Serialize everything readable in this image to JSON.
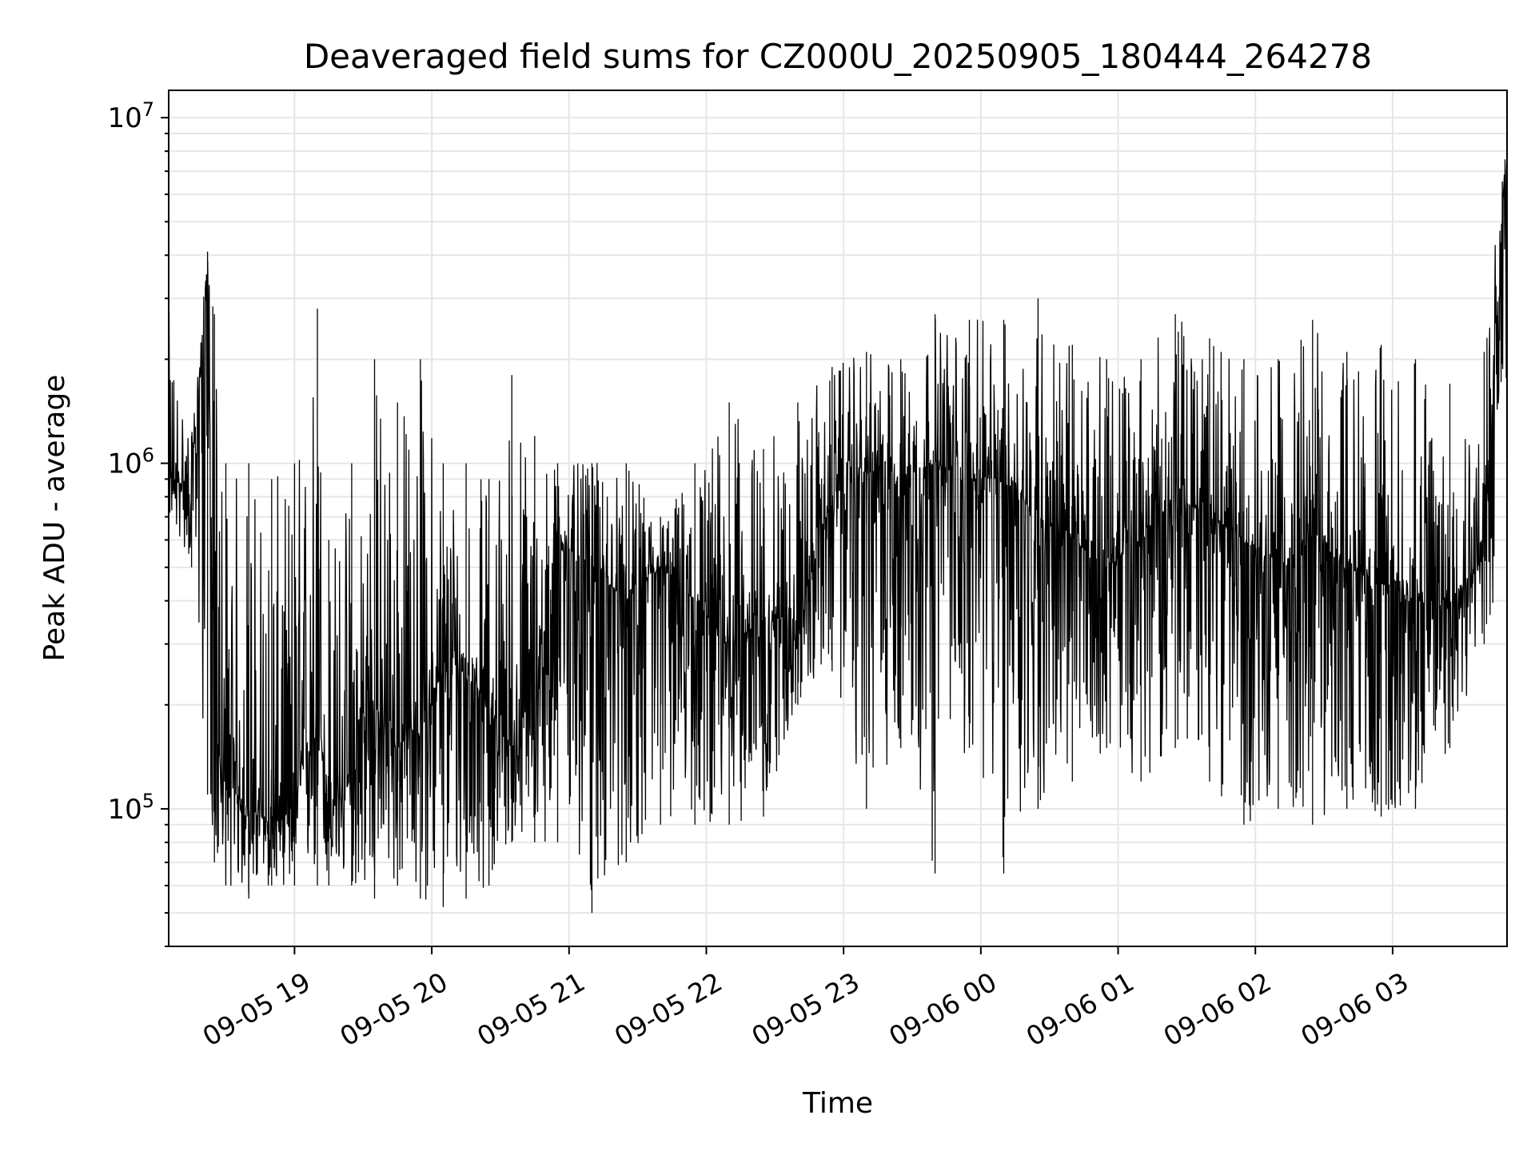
{
  "chart_data": {
    "type": "line",
    "title": "Deaveraged field sums for CZ000U_20250905_180444_264278",
    "xlabel": "Time",
    "ylabel": "Peak ADU - average",
    "x_axis": {
      "kind": "datetime",
      "range": [
        "2025-09-05 18:05",
        "2025-09-06 03:50"
      ],
      "ticks": [
        "2025-09-05 19:00",
        "2025-09-05 20:00",
        "2025-09-05 21:00",
        "2025-09-05 22:00",
        "2025-09-05 23:00",
        "2025-09-06 00:00",
        "2025-09-06 01:00",
        "2025-09-06 02:00",
        "2025-09-06 03:00"
      ],
      "tick_labels": [
        "09-05 19",
        "09-05 20",
        "09-05 21",
        "09-05 22",
        "09-05 23",
        "09-06 00",
        "09-06 01",
        "09-06 02",
        "09-06 03"
      ]
    },
    "y_axis": {
      "scale": "log",
      "range": [
        40000,
        12000000
      ],
      "major_ticks": [
        100000,
        1000000,
        10000000
      ],
      "tick_labels": [
        {
          "base": "10",
          "exp": "5"
        },
        {
          "base": "10",
          "exp": "6"
        },
        {
          "base": "10",
          "exp": "7"
        }
      ]
    },
    "grid": true,
    "legend": "none",
    "line_color": "#000000",
    "grid_color": "#e6e6e6",
    "series": [
      {
        "x": [
          "2025-09-05 18:05",
          "2025-09-05 18:15",
          "2025-09-05 18:22",
          "2025-09-05 18:25",
          "2025-09-05 18:30",
          "2025-09-05 18:40",
          "2025-09-05 18:50",
          "2025-09-05 19:00",
          "2025-09-05 19:10",
          "2025-09-05 19:15",
          "2025-09-05 19:25",
          "2025-09-05 19:35",
          "2025-09-05 19:45",
          "2025-09-05 19:55",
          "2025-09-05 20:05",
          "2025-09-05 20:15",
          "2025-09-05 20:25",
          "2025-09-05 20:35",
          "2025-09-05 20:45",
          "2025-09-05 20:55",
          "2025-09-05 21:10",
          "2025-09-05 21:25",
          "2025-09-05 21:40",
          "2025-09-05 21:55",
          "2025-09-05 22:10",
          "2025-09-05 22:25",
          "2025-09-05 22:40",
          "2025-09-05 22:55",
          "2025-09-05 23:10",
          "2025-09-05 23:25",
          "2025-09-05 23:40",
          "2025-09-05 23:55",
          "2025-09-06 00:10",
          "2025-09-06 00:25",
          "2025-09-06 00:40",
          "2025-09-06 00:55",
          "2025-09-06 01:10",
          "2025-09-06 01:25",
          "2025-09-06 01:40",
          "2025-09-06 01:55",
          "2025-09-06 02:10",
          "2025-09-06 02:25",
          "2025-09-06 02:40",
          "2025-09-06 02:55",
          "2025-09-06 03:10",
          "2025-09-06 03:25",
          "2025-09-06 03:40",
          "2025-09-06 03:50"
        ],
        "y": [
          900000,
          850000,
          3900000,
          150000,
          120000,
          100000,
          90000,
          100000,
          200000,
          100000,
          120000,
          200000,
          150000,
          180000,
          250000,
          250000,
          200000,
          150000,
          200000,
          600000,
          500000,
          400000,
          500000,
          400000,
          300000,
          350000,
          350000,
          800000,
          950000,
          900000,
          1000000,
          900000,
          900000,
          700000,
          600000,
          500000,
          600000,
          800000,
          700000,
          600000,
          500000,
          600000,
          500000,
          450000,
          400000,
          400000,
          550000,
          9500000
        ],
        "bottom_envelope": [
          700000,
          500000,
          110000,
          70000,
          60000,
          55000,
          60000,
          60000,
          60000,
          60000,
          60000,
          55000,
          60000,
          55000,
          52000,
          55000,
          60000,
          80000,
          80000,
          80000,
          50000,
          70000,
          90000,
          90000,
          90000,
          95000,
          200000,
          250000,
          100000,
          150000,
          65000,
          150000,
          65000,
          100000,
          120000,
          150000,
          120000,
          150000,
          120000,
          90000,
          100000,
          90000,
          100000,
          95000,
          100000,
          150000,
          300000,
          400000
        ],
        "top_envelope": [
          2800000,
          1200000,
          4100000,
          2700000,
          1000000,
          1000000,
          900000,
          1000000,
          2800000,
          600000,
          1000000,
          2000000,
          1500000,
          2000000,
          1000000,
          1000000,
          900000,
          1800000,
          1200000,
          1000000,
          1000000,
          1000000,
          700000,
          1000000,
          1500000,
          1100000,
          1500000,
          1900000,
          2100000,
          2000000,
          2700000,
          2600000,
          2600000,
          3000000,
          2200000,
          2000000,
          2000000,
          2700000,
          2300000,
          2000000,
          2000000,
          2600000,
          2100000,
          2200000,
          2000000,
          1700000,
          2100000,
          9500000
        ]
      }
    ]
  }
}
